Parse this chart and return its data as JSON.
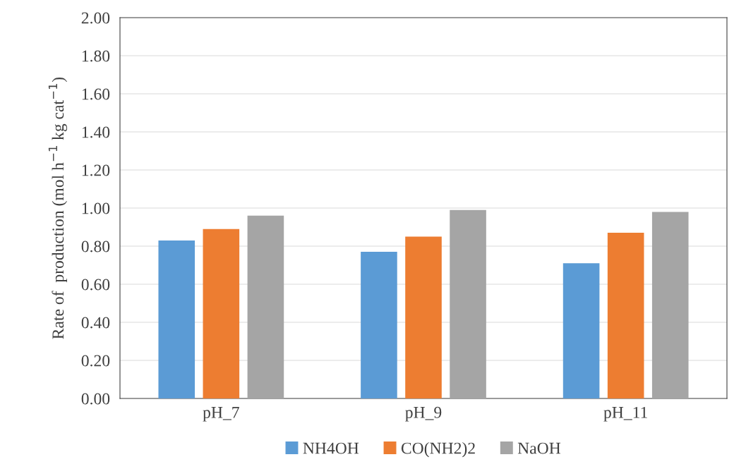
{
  "chart_data": {
    "type": "bar",
    "ylabel": "Rate of  production (mol h$^{−1}$ kg cat$^{−1}$)",
    "categories": [
      "pH_7",
      "pH_9",
      "pH_11"
    ],
    "series": [
      {
        "name": "NH4OH",
        "color": "#5b9bd5",
        "values": [
          0.83,
          0.77,
          0.71
        ]
      },
      {
        "name": "CO(NH2)2",
        "color": "#ed7d31",
        "values": [
          0.89,
          0.85,
          0.87
        ]
      },
      {
        "name": "NaOH",
        "color": "#a5a5a5",
        "values": [
          0.96,
          0.99,
          0.98
        ]
      }
    ],
    "ylim": [
      0,
      2
    ],
    "yticks": [
      {
        "value": 0,
        "label": "0.00"
      },
      {
        "value": 0.2,
        "label": "0.20"
      },
      {
        "value": 0.4,
        "label": "0.40"
      },
      {
        "value": 0.6,
        "label": "0.60"
      },
      {
        "value": 0.8,
        "label": "0.80"
      },
      {
        "value": 1,
        "label": "1.00"
      },
      {
        "value": 1.2,
        "label": "1.20"
      },
      {
        "value": 1.4,
        "label": "1.40"
      },
      {
        "value": 1.6,
        "label": "1.60"
      },
      {
        "value": 1.8,
        "label": "1.80"
      },
      {
        "value": 2,
        "label": "2.00"
      }
    ],
    "grid": "y",
    "legend": "bottom"
  }
}
